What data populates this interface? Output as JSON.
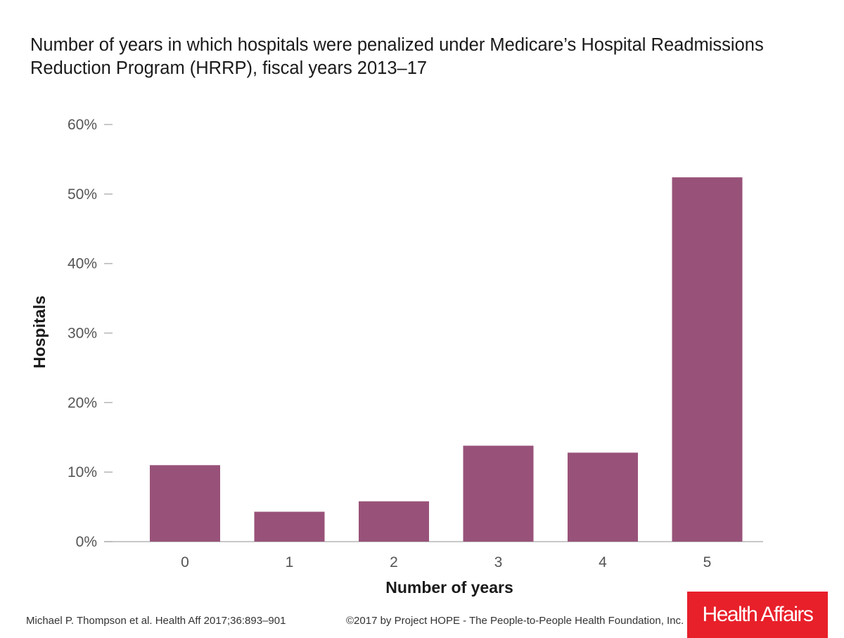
{
  "chart_data": {
    "type": "bar",
    "title": "Number of years in which hospitals were penalized under Medicare’s Hospital Readmissions Reduction Program (HRRP), fiscal years 2013–17",
    "categories": [
      "0",
      "1",
      "2",
      "3",
      "4",
      "5"
    ],
    "values": [
      11.0,
      4.3,
      5.8,
      13.8,
      12.8,
      52.4
    ],
    "xlabel": "Number of years",
    "ylabel": "Hospitals",
    "ylim": [
      0,
      60
    ],
    "yticks": [
      "0%",
      "10%",
      "20%",
      "30%",
      "40%",
      "50%",
      "60%"
    ],
    "ytick_values": [
      0,
      10,
      20,
      30,
      40,
      50,
      60
    ],
    "bar_color": "#985279",
    "grid": false,
    "legend": "none"
  },
  "footer": {
    "citation": "Michael P. Thompson et al. Health Aff 2017;36:893–901",
    "copyright": "©2017 by Project HOPE - The People-to-People Health Foundation, Inc.",
    "logo_text": "Health Affairs",
    "logo_color": "#e8202a"
  }
}
